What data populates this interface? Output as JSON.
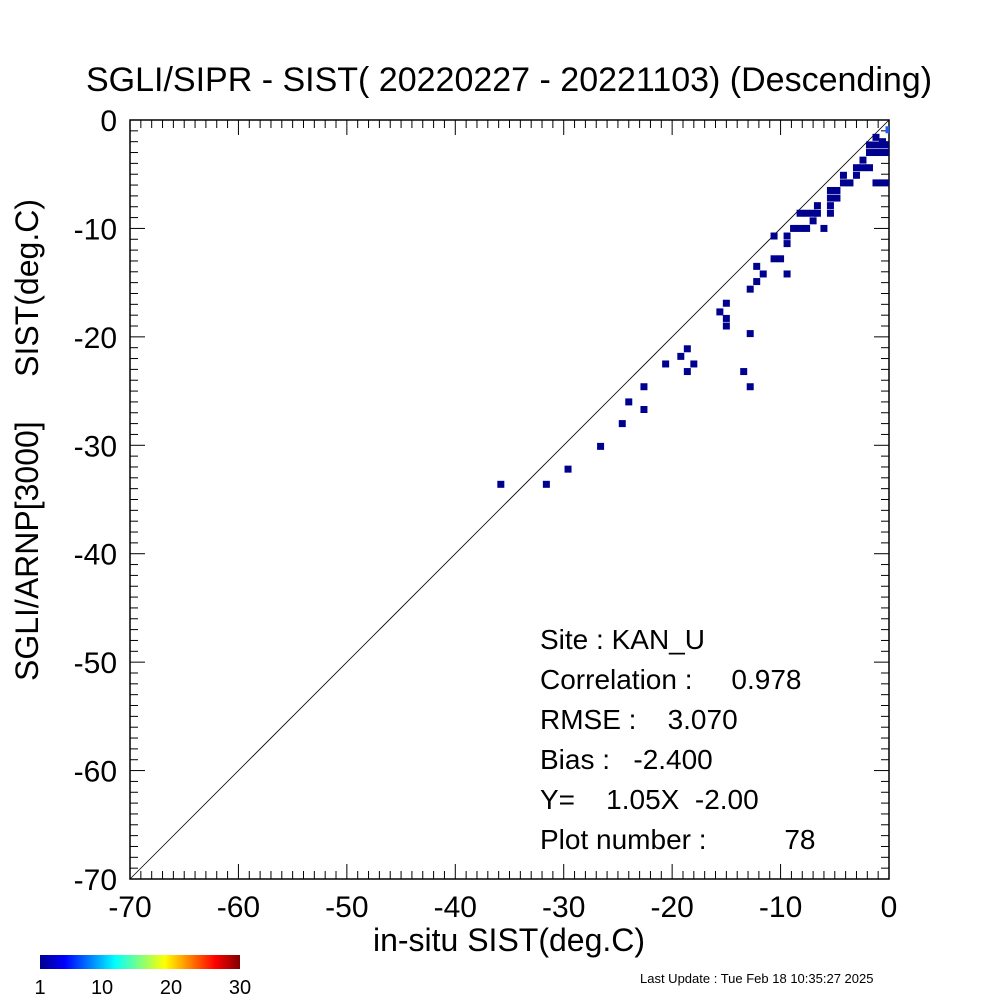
{
  "chart_data": {
    "type": "scatter",
    "title": "SGLI/SIPR - SIST( 20220227 - 20221103) (Descending)",
    "xlabel": "in-situ SIST(deg.C)",
    "ylabel": "SGLI/ARNP[3000]     SIST(deg.C)",
    "xlim": [
      -70,
      0
    ],
    "ylim": [
      -70,
      0
    ],
    "x_ticks": [
      "-70",
      "-60",
      "-50",
      "-40",
      "-30",
      "-20",
      "-10",
      "0"
    ],
    "y_ticks": [
      "0",
      "-10",
      "-20",
      "-30",
      "-40",
      "-50",
      "-60",
      "-70"
    ],
    "grid": false,
    "reference_line": "y = x",
    "stats": [
      "Site : KAN_U",
      "Correlation :     0.978",
      "RMSE :    3.070",
      "Bias :   -2.400",
      "Y=    1.05X  -2.00",
      "Plot number :          78"
    ],
    "colorbar": {
      "labels": [
        "1",
        "10",
        "20",
        "30"
      ],
      "min": 1,
      "max": 30,
      "colormap": "jet"
    },
    "point_color": "#00008f",
    "point_color_alt": "#1f5cff",
    "points": [
      {
        "x": -35.8,
        "y": -33.6,
        "count": 1
      },
      {
        "x": -31.6,
        "y": -33.6,
        "count": 1
      },
      {
        "x": -29.6,
        "y": -32.2,
        "count": 1
      },
      {
        "x": -26.6,
        "y": -30.1,
        "count": 1
      },
      {
        "x": -24.6,
        "y": -28.0,
        "count": 1
      },
      {
        "x": -24.0,
        "y": -26.0,
        "count": 1
      },
      {
        "x": -22.6,
        "y": -24.6,
        "count": 1
      },
      {
        "x": -22.6,
        "y": -26.7,
        "count": 1
      },
      {
        "x": -20.6,
        "y": -22.5,
        "count": 1
      },
      {
        "x": -19.2,
        "y": -21.8,
        "count": 1
      },
      {
        "x": -18.6,
        "y": -21.1,
        "count": 1
      },
      {
        "x": -18.6,
        "y": -23.2,
        "count": 1
      },
      {
        "x": -18.0,
        "y": -22.5,
        "count": 1
      },
      {
        "x": -15.6,
        "y": -17.7,
        "count": 1
      },
      {
        "x": -15.0,
        "y": -16.9,
        "count": 1
      },
      {
        "x": -15.0,
        "y": -18.3,
        "count": 1
      },
      {
        "x": -15.0,
        "y": -19.0,
        "count": 1
      },
      {
        "x": -13.4,
        "y": -23.2,
        "count": 1
      },
      {
        "x": -12.8,
        "y": -24.6,
        "count": 1
      },
      {
        "x": -12.8,
        "y": -19.7,
        "count": 1
      },
      {
        "x": -12.8,
        "y": -15.6,
        "count": 1
      },
      {
        "x": -12.2,
        "y": -13.5,
        "count": 1
      },
      {
        "x": -12.2,
        "y": -14.9,
        "count": 1
      },
      {
        "x": -11.6,
        "y": -14.2,
        "count": 1
      },
      {
        "x": -10.6,
        "y": -10.7,
        "count": 1
      },
      {
        "x": -10.6,
        "y": -12.8,
        "count": 1
      },
      {
        "x": -10.0,
        "y": -12.8,
        "count": 1
      },
      {
        "x": -9.4,
        "y": -11.4,
        "count": 1
      },
      {
        "x": -9.4,
        "y": -10.7,
        "count": 1
      },
      {
        "x": -9.4,
        "y": -14.2,
        "count": 1
      },
      {
        "x": -8.8,
        "y": -10.0,
        "count": 1
      },
      {
        "x": -8.2,
        "y": -10.0,
        "count": 1
      },
      {
        "x": -8.2,
        "y": -8.6,
        "count": 1
      },
      {
        "x": -7.6,
        "y": -10.0,
        "count": 1
      },
      {
        "x": -7.6,
        "y": -8.6,
        "count": 1
      },
      {
        "x": -7.0,
        "y": -9.3,
        "count": 1
      },
      {
        "x": -7.0,
        "y": -8.6,
        "count": 1
      },
      {
        "x": -6.6,
        "y": -8.6,
        "count": 1
      },
      {
        "x": -6.6,
        "y": -7.9,
        "count": 1
      },
      {
        "x": -6.0,
        "y": -10.0,
        "count": 1
      },
      {
        "x": -5.4,
        "y": -8.6,
        "count": 1
      },
      {
        "x": -5.4,
        "y": -7.9,
        "count": 1
      },
      {
        "x": -5.4,
        "y": -7.2,
        "count": 1
      },
      {
        "x": -5.4,
        "y": -6.5,
        "count": 1
      },
      {
        "x": -4.8,
        "y": -7.2,
        "count": 1
      },
      {
        "x": -4.8,
        "y": -6.5,
        "count": 1
      },
      {
        "x": -4.2,
        "y": -5.8,
        "count": 1
      },
      {
        "x": -4.2,
        "y": -5.1,
        "count": 1
      },
      {
        "x": -3.6,
        "y": -5.8,
        "count": 1
      },
      {
        "x": -3.0,
        "y": -5.1,
        "count": 1
      },
      {
        "x": -3.0,
        "y": -4.4,
        "count": 1
      },
      {
        "x": -2.4,
        "y": -4.4,
        "count": 1
      },
      {
        "x": -2.4,
        "y": -3.7,
        "count": 1
      },
      {
        "x": -1.8,
        "y": -4.4,
        "count": 1
      },
      {
        "x": -1.8,
        "y": -3.0,
        "count": 1
      },
      {
        "x": -1.8,
        "y": -2.3,
        "count": 1
      },
      {
        "x": -1.2,
        "y": -2.3,
        "count": 1
      },
      {
        "x": -1.2,
        "y": -3.0,
        "count": 1
      },
      {
        "x": -1.2,
        "y": -1.6,
        "count": 1
      },
      {
        "x": -1.2,
        "y": -5.8,
        "count": 1
      },
      {
        "x": -0.6,
        "y": -2.3,
        "count": 1
      },
      {
        "x": -0.6,
        "y": -3.0,
        "count": 1
      },
      {
        "x": -0.6,
        "y": -5.8,
        "count": 1
      },
      {
        "x": -0.6,
        "y": -2.0,
        "count": 1
      },
      {
        "x": 0.0,
        "y": -2.3,
        "count": 1
      },
      {
        "x": 0.0,
        "y": -3.0,
        "count": 1
      },
      {
        "x": 0.0,
        "y": -5.8,
        "count": 1
      },
      {
        "x": 0.0,
        "y": -0.9,
        "count": 4
      }
    ]
  },
  "footer": {
    "last_update": "Last Update : Tue Feb 18 10:35:27 2025"
  }
}
